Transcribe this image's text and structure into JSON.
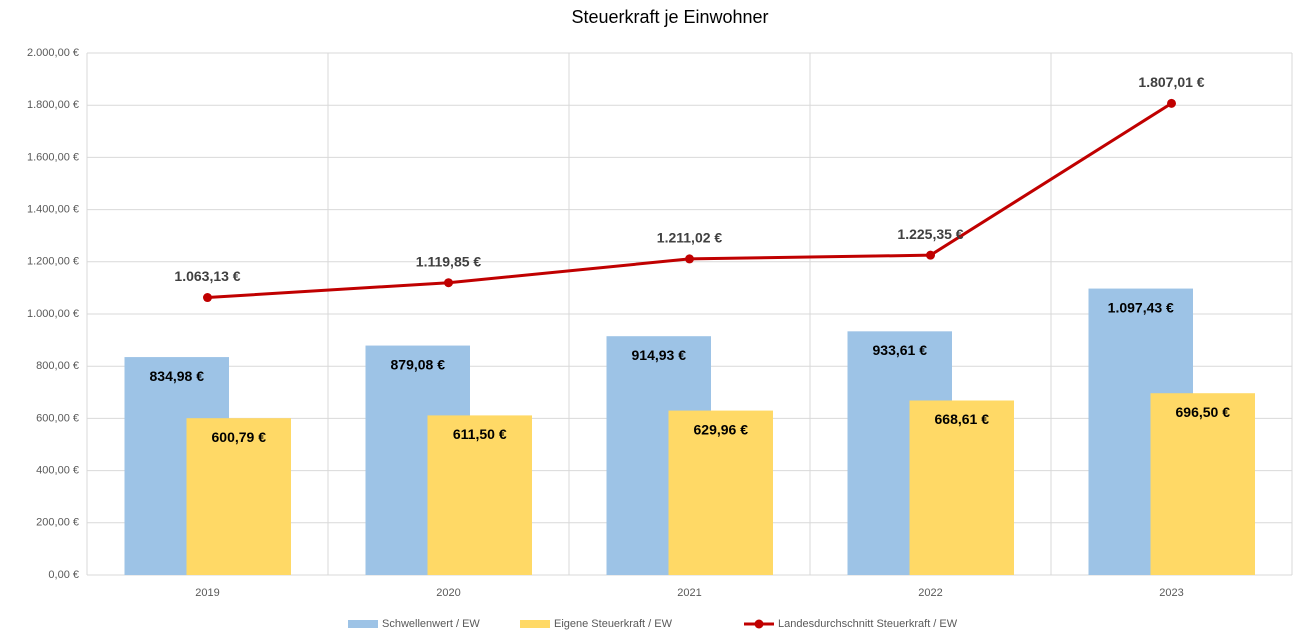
{
  "chart_data": {
    "type": "bar",
    "title": "Steuerkraft je Einwohner",
    "categories": [
      "2019",
      "2020",
      "2021",
      "2022",
      "2023"
    ],
    "ylim": [
      0,
      2000
    ],
    "yticks": [
      {
        "value": 0,
        "label": "0,00 €"
      },
      {
        "value": 200,
        "label": "200,00 €"
      },
      {
        "value": 400,
        "label": "400,00 €"
      },
      {
        "value": 600,
        "label": "600,00 €"
      },
      {
        "value": 800,
        "label": "800,00 €"
      },
      {
        "value": 1000,
        "label": "1.000,00 €"
      },
      {
        "value": 1200,
        "label": "1.200,00 €"
      },
      {
        "value": 1400,
        "label": "1.400,00 €"
      },
      {
        "value": 1600,
        "label": "1.600,00 €"
      },
      {
        "value": 1800,
        "label": "1.800,00 €"
      },
      {
        "value": 2000,
        "label": "2.000,00 €"
      }
    ],
    "grid": true,
    "legend": "bottom",
    "series": [
      {
        "name": "Schwellenwert / EW",
        "type": "bar",
        "color": "#9dc3e6",
        "values": [
          834.98,
          879.08,
          914.93,
          933.61,
          1097.43
        ],
        "value_labels": [
          "834,98 €",
          "879,08 €",
          "914,93 €",
          "933,61 €",
          "1.097,43 €"
        ]
      },
      {
        "name": "Eigene Steuerkraft / EW",
        "type": "bar",
        "color": "#ffd966",
        "values": [
          600.79,
          611.5,
          629.96,
          668.61,
          696.5
        ],
        "value_labels": [
          "600,79 €",
          "611,50 €",
          "629,96 €",
          "668,61 €",
          "696,50 €"
        ]
      },
      {
        "name": "Landesdurchschnitt Steuerkraft / EW",
        "type": "line",
        "color": "#c00000",
        "values": [
          1063.13,
          1119.85,
          1211.02,
          1225.35,
          1807.01
        ],
        "value_labels": [
          "1.063,13 €",
          "1.119,85 €",
          "1.211,02 €",
          "1.225,35 €",
          "1.807,01 €"
        ]
      }
    ]
  }
}
